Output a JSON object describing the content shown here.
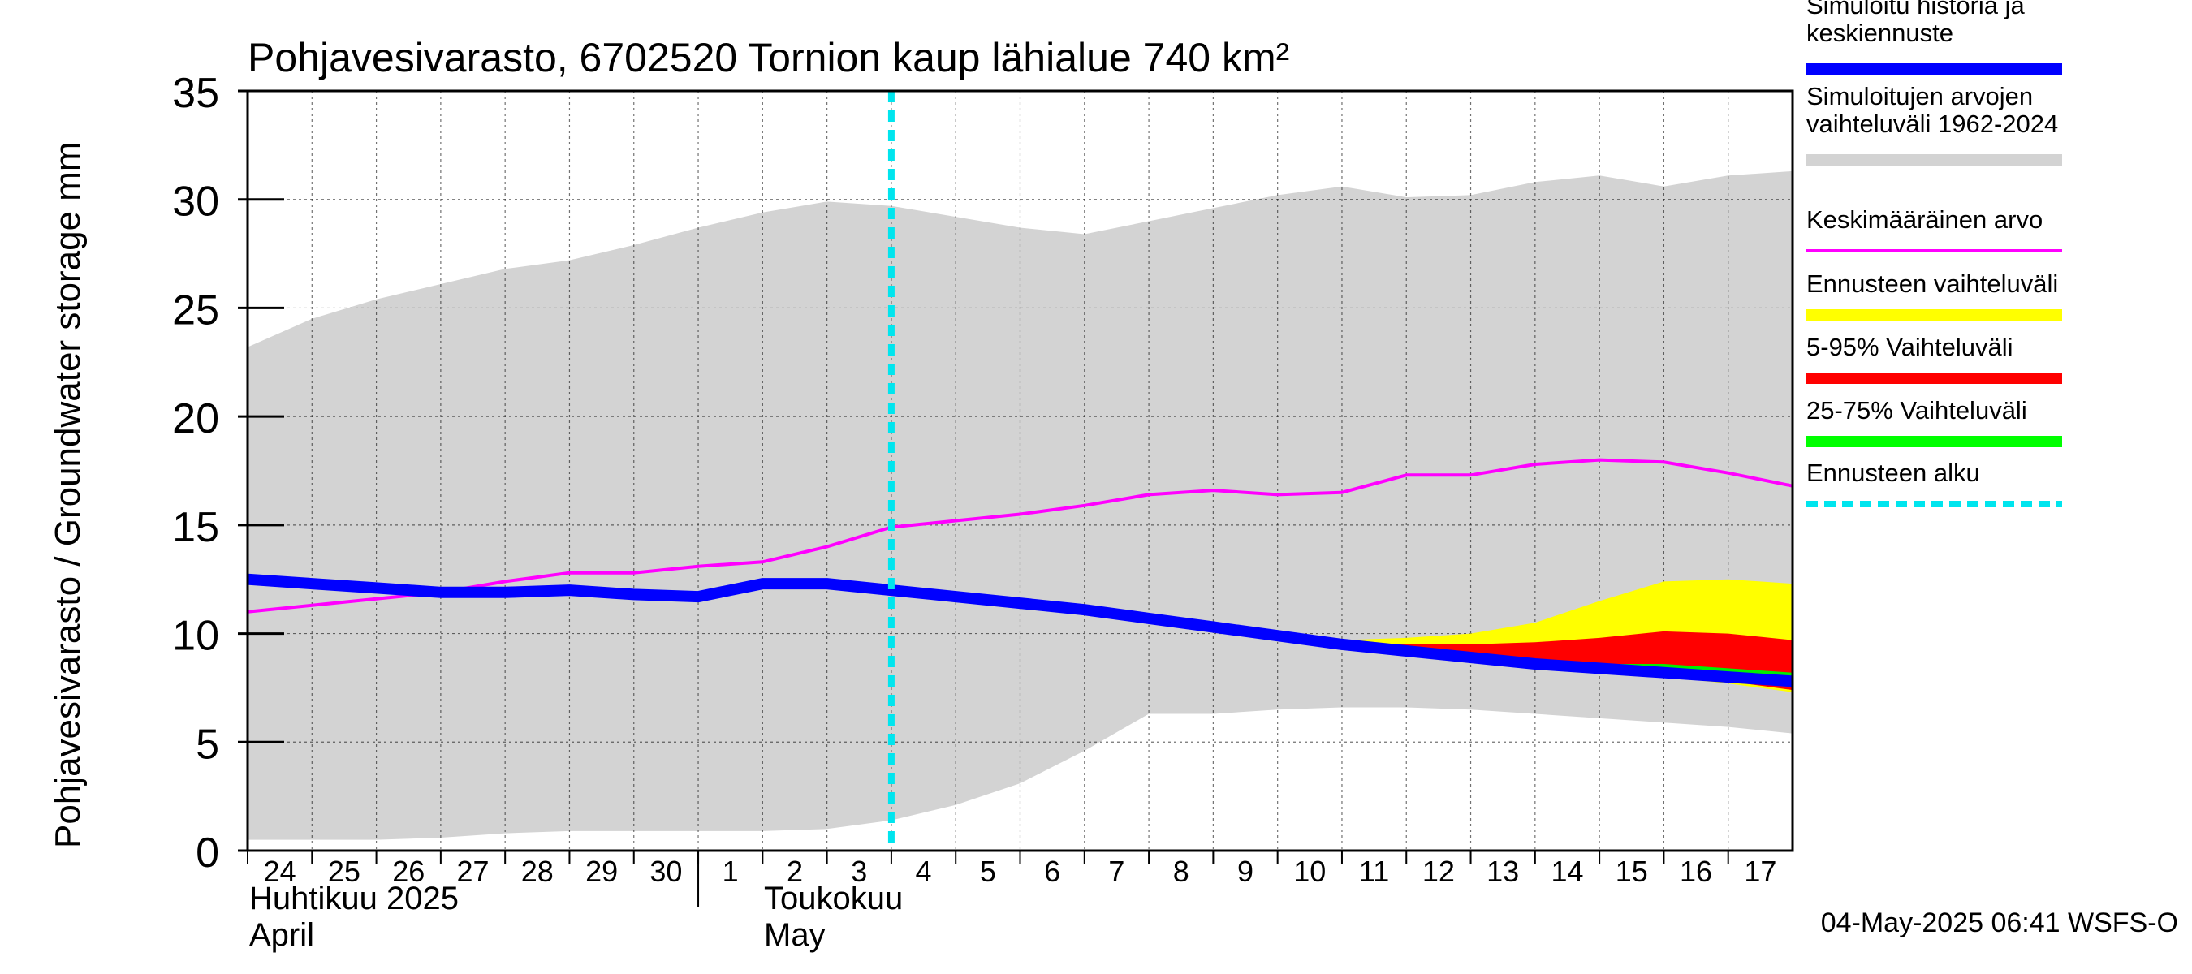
{
  "chart_data": {
    "type": "area",
    "title": "Pohjavesivarasto, 6702520 Tornion kaup lähialue 740 km²",
    "ylabel": "Pohjavesivarasto / Groundwater storage   mm",
    "ylim": [
      0,
      35
    ],
    "yticks": [
      0,
      5,
      10,
      15,
      20,
      25,
      30,
      35
    ],
    "xlim": [
      0,
      24
    ],
    "x_tick_labels": [
      "24",
      "25",
      "26",
      "27",
      "28",
      "29",
      "30",
      "1",
      "2",
      "3",
      "4",
      "5",
      "6",
      "7",
      "8",
      "9",
      "10",
      "11",
      "12",
      "13",
      "14",
      "15",
      "16",
      "17"
    ],
    "month_labels": [
      {
        "fi": "Huhtikuu  2025",
        "en": "April",
        "at": 0
      },
      {
        "fi": "Toukokuu",
        "en": "May",
        "at": 8
      }
    ],
    "month_separator_at": 7,
    "forecast_start_x": 10,
    "grid": true,
    "legend_position": "right",
    "legend": [
      {
        "label": "Simuloitu historia ja keskiennuste",
        "color": "#0000ff"
      },
      {
        "label": "Simuloitujen arvojen vaihteluväli 1962-2024",
        "color": "#d3d3d3"
      },
      {
        "label": "Keskimääräinen arvo",
        "color": "#ff00ff"
      },
      {
        "label": "Ennusteen vaihteluväli",
        "color": "#ffff00"
      },
      {
        "label": "5-95% Vaihteluväli",
        "color": "#ff0000"
      },
      {
        "label": "25-75% Vaihteluväli",
        "color": "#00ff00"
      },
      {
        "label": "Ennusteen alku",
        "color": "#00e5ee"
      }
    ],
    "series": {
      "range_x": [
        0,
        1,
        2,
        3,
        4,
        5,
        6,
        7,
        8,
        9,
        10,
        11,
        12,
        13,
        14,
        15,
        16,
        17,
        18,
        19,
        20,
        21,
        22,
        23,
        24
      ],
      "range_max": [
        23.2,
        24.5,
        25.4,
        26.1,
        26.8,
        27.2,
        27.9,
        28.7,
        29.4,
        29.9,
        29.7,
        29.2,
        28.7,
        28.4,
        29.0,
        29.6,
        30.2,
        30.6,
        30.1,
        30.2,
        30.8,
        31.1,
        30.6,
        31.1,
        31.3
      ],
      "range_min": [
        0.5,
        0.5,
        0.5,
        0.6,
        0.8,
        0.9,
        0.9,
        0.9,
        0.9,
        1.0,
        1.4,
        2.1,
        3.1,
        4.6,
        6.3,
        6.3,
        6.5,
        6.6,
        6.6,
        6.5,
        6.3,
        6.1,
        5.9,
        5.7,
        5.4
      ],
      "mean_x": [
        0,
        1,
        2,
        3,
        4,
        5,
        6,
        7,
        8,
        9,
        10,
        11,
        12,
        13,
        14,
        15,
        16,
        17,
        18,
        19,
        20,
        21,
        22,
        23,
        24
      ],
      "mean": [
        11.0,
        11.3,
        11.6,
        11.9,
        12.4,
        12.8,
        12.8,
        13.1,
        13.3,
        14.0,
        14.9,
        15.2,
        15.5,
        15.9,
        16.4,
        16.6,
        16.4,
        16.5,
        17.3,
        17.3,
        17.8,
        18.0,
        17.9,
        17.4,
        16.8
      ],
      "sim_x": [
        0,
        1,
        2,
        3,
        4,
        5,
        6,
        7,
        8,
        9,
        10,
        11,
        12,
        13,
        14,
        15,
        16,
        17,
        18,
        19,
        20,
        21,
        22,
        23,
        24
      ],
      "sim": [
        12.5,
        12.3,
        12.1,
        11.9,
        11.9,
        12.0,
        11.8,
        11.7,
        12.3,
        12.3,
        12.0,
        11.7,
        11.4,
        11.1,
        10.7,
        10.3,
        9.9,
        9.5,
        9.2,
        8.9,
        8.6,
        8.4,
        8.2,
        8.0,
        7.8
      ],
      "forecast_x": [
        16,
        17,
        18,
        19,
        20,
        21,
        22,
        23,
        24
      ],
      "forecast_max": [
        9.9,
        9.7,
        9.8,
        10.0,
        10.5,
        11.5,
        12.4,
        12.5,
        12.3
      ],
      "forecast_min": [
        9.9,
        9.5,
        9.2,
        8.9,
        8.6,
        8.3,
        8.0,
        7.7,
        7.3
      ],
      "p95": [
        9.9,
        9.6,
        9.5,
        9.5,
        9.6,
        9.8,
        10.1,
        10.0,
        9.7
      ],
      "p5": [
        9.9,
        9.5,
        9.2,
        8.9,
        8.6,
        8.3,
        8.0,
        7.8,
        7.4
      ],
      "p75": [
        9.9,
        9.5,
        9.2,
        9.0,
        8.8,
        8.6,
        8.6,
        8.4,
        8.2
      ],
      "p25": [
        9.9,
        9.5,
        9.2,
        8.9,
        8.6,
        8.3,
        8.1,
        7.9,
        7.7
      ]
    }
  },
  "timestamp": "04-May-2025 06:41 WSFS-O"
}
